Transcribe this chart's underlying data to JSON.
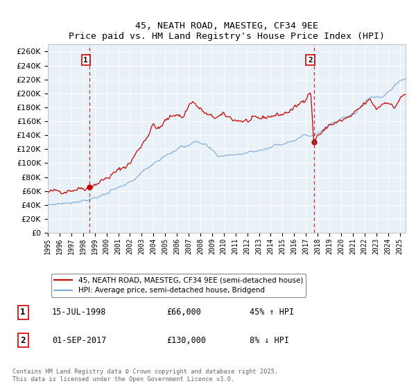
{
  "title": "45, NEATH ROAD, MAESTEG, CF34 9EE",
  "subtitle": "Price paid vs. HM Land Registry's House Price Index (HPI)",
  "legend_line1": "45, NEATH ROAD, MAESTEG, CF34 9EE (semi-detached house)",
  "legend_line2": "HPI: Average price, semi-detached house, Bridgend",
  "footer": "Contains HM Land Registry data © Crown copyright and database right 2025.\nThis data is licensed under the Open Government Licence v3.0.",
  "sale1_label": "1",
  "sale1_date": "15-JUL-1998",
  "sale1_price": "£66,000",
  "sale1_hpi": "45% ↑ HPI",
  "sale2_label": "2",
  "sale2_date": "01-SEP-2017",
  "sale2_price": "£130,000",
  "sale2_hpi": "8% ↓ HPI",
  "sale1_year": 1998.54,
  "sale1_value": 66000,
  "sale2_year": 2017.67,
  "sale2_value": 130000,
  "red_color": "#cc0000",
  "blue_color": "#7aaadd",
  "bg_color": "#e8f0f8",
  "ylim_max": 270000,
  "ylim_min": 0,
  "xmin": 1995,
  "xmax": 2025.5
}
